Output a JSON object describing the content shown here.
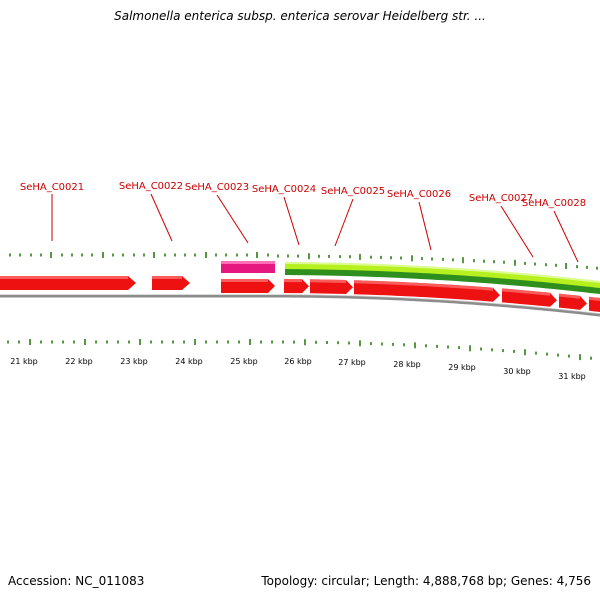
{
  "title": "Salmonella enterica subsp. enterica serovar Heidelberg str. ...",
  "footer": {
    "accession": "Accession: NC_011083",
    "summary": "Topology: circular; Length: 4,888,768 bp; Genes: 4,756"
  },
  "colors": {
    "cds": "#ee1111",
    "cds_highlight": "#ff7b7b",
    "rna": "#e6177f",
    "rna_highlight": "#ff6fb8",
    "label": "#cc0000",
    "gc_outer": "#b6f01e",
    "gc_inner": "#2f8f1e",
    "tick": "#2a7f12",
    "backbone": "#8c8c8c"
  },
  "gene_labels": [
    "SeHA_C0021",
    "SeHA_C0022",
    "SeHA_C0023",
    "SeHA_C0024",
    "SeHA_C0025",
    "SeHA_C0026",
    "SeHA_C0027",
    "SeHA_C0028"
  ],
  "scale_labels": [
    "21 kbp",
    "22 kbp",
    "23 kbp",
    "24 kbp",
    "25 kbp",
    "26 kbp",
    "27 kbp",
    "28 kbp",
    "29 kbp",
    "30 kbp",
    "31 kbp"
  ]
}
